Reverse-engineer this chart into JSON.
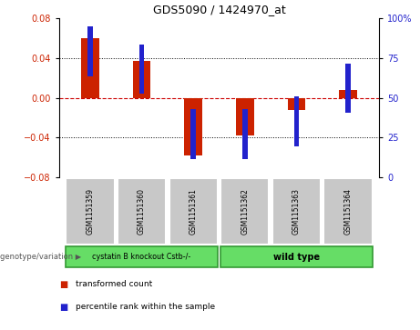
{
  "title": "GDS5090 / 1424970_at",
  "samples": [
    "GSM1151359",
    "GSM1151360",
    "GSM1151361",
    "GSM1151362",
    "GSM1151363",
    "GSM1151364"
  ],
  "transformed_counts": [
    0.06,
    0.037,
    -0.058,
    -0.038,
    -0.012,
    0.008
  ],
  "percentile_ranks": [
    79,
    68,
    27,
    27,
    35,
    56
  ],
  "ylim_left": [
    -0.08,
    0.08
  ],
  "ylim_right": [
    0,
    100
  ],
  "yticks_left": [
    -0.08,
    -0.04,
    0,
    0.04,
    0.08
  ],
  "yticks_right": [
    0,
    25,
    50,
    75,
    100
  ],
  "group1_label": "cystatin B knockout Cstb-/-",
  "group2_label": "wild type",
  "group_color": "#66DD66",
  "group_edge_color": "#339933",
  "bar_color_red": "#CC2200",
  "bar_color_blue": "#2222CC",
  "zero_line_color": "#CC0000",
  "label_bg_color": "#C8C8C8",
  "label_edge_color": "#AAAAAA",
  "genotype_label": "genotype/variation",
  "legend_red_label": "transformed count",
  "legend_blue_label": "percentile rank within the sample",
  "red_bar_width": 0.35,
  "blue_bar_width": 0.1
}
